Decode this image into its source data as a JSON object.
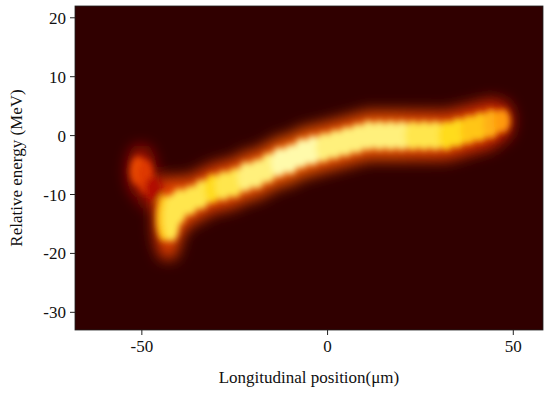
{
  "chart_data": {
    "type": "heatmap",
    "x_label": "Longitudinal position(μm)",
    "y_label": "Relative energy (MeV)",
    "x": [
      -51,
      -49,
      -47,
      -44,
      -42,
      -40,
      -37,
      -34,
      -31,
      -28,
      -25,
      -22,
      -19,
      -16,
      -13,
      -10,
      -7,
      -4,
      -1,
      2,
      5,
      8,
      11,
      14,
      17,
      20,
      23,
      26,
      29,
      32,
      35,
      38,
      41,
      44,
      47
    ],
    "values": [
      -6,
      -7,
      -9,
      -14,
      -14,
      -12,
      -11,
      -10,
      -9,
      -8.5,
      -8,
      -7,
      -6.5,
      -5.5,
      -4.5,
      -4,
      -3,
      -2.5,
      -2,
      -1.5,
      -1,
      -0.5,
      0,
      0,
      0,
      0,
      0,
      0,
      0,
      0,
      0.5,
      1,
      1.5,
      2,
      2.5
    ],
    "spread": [
      2.5,
      3,
      2,
      4,
      4,
      3,
      2.5,
      2.5,
      2.5,
      2.5,
      2.5,
      2.5,
      2.5,
      2.5,
      2.5,
      2.5,
      2.5,
      2.5,
      2.5,
      2.5,
      2.5,
      2.5,
      2.5,
      2.5,
      2.5,
      2.5,
      2.5,
      2.5,
      2.5,
      2.5,
      2.5,
      2.5,
      2.5,
      2.5,
      2
    ],
    "intensity": [
      0.5,
      0.45,
      0.3,
      0.8,
      0.9,
      0.9,
      0.9,
      0.9,
      0.85,
      0.9,
      0.9,
      0.95,
      0.95,
      0.95,
      1,
      1,
      1,
      1,
      0.95,
      0.95,
      0.95,
      0.95,
      0.95,
      0.95,
      0.95,
      0.95,
      0.9,
      0.9,
      0.9,
      0.85,
      0.85,
      0.8,
      0.8,
      0.75,
      0.7
    ],
    "xlim": [
      -68,
      58
    ],
    "xticks": [
      -50,
      0,
      50
    ],
    "ylim": [
      -33,
      22
    ],
    "yticks": [
      -30,
      -20,
      -10,
      0,
      10,
      20
    ],
    "color": "hot",
    "grid": false
  }
}
